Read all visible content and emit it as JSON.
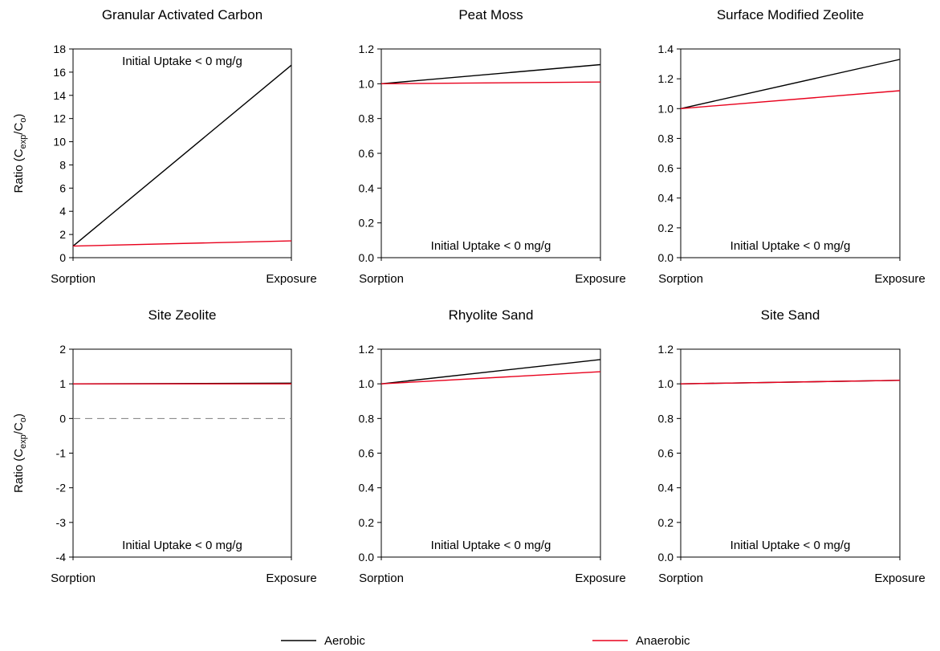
{
  "colors": {
    "aerobic": "#000000",
    "anaerobic": "#e8001c",
    "axis": "#000000",
    "zero_line": "#7f7f7f"
  },
  "legend": {
    "aerobic_label": "Aerobic",
    "anaerobic_label": "Anaerobic",
    "placement": "bottom"
  },
  "ylabel_parts": {
    "base": "Ratio (C",
    "sub1": "exp",
    "mid": "/C",
    "sub2": "o",
    "end": ")"
  },
  "chart_data": [
    {
      "type": "line",
      "title": "Granular Activated Carbon",
      "categories": [
        "Sorption",
        "Exposure"
      ],
      "ylim": [
        0,
        18
      ],
      "yticks": [
        "0",
        "2",
        "4",
        "6",
        "8",
        "10",
        "12",
        "14",
        "16",
        "18"
      ],
      "series": [
        {
          "name": "Aerobic",
          "values": [
            1.0,
            16.6
          ]
        },
        {
          "name": "Anaerobic",
          "values": [
            1.0,
            1.45
          ]
        }
      ],
      "annotation": "Initial Uptake < 0 mg/g",
      "annotation_position": "top",
      "show_ylabel": true
    },
    {
      "type": "line",
      "title": "Peat Moss",
      "categories": [
        "Sorption",
        "Exposure"
      ],
      "ylim": [
        0,
        1.2
      ],
      "yticks": [
        "0.0",
        "0.2",
        "0.4",
        "0.6",
        "0.8",
        "1.0",
        "1.2"
      ],
      "series": [
        {
          "name": "Aerobic",
          "values": [
            1.0,
            1.11
          ]
        },
        {
          "name": "Anaerobic",
          "values": [
            1.0,
            1.01
          ]
        }
      ],
      "annotation": "Initial Uptake < 0 mg/g",
      "annotation_position": "bottom",
      "show_ylabel": false
    },
    {
      "type": "line",
      "title": "Surface Modified Zeolite",
      "categories": [
        "Sorption",
        "Exposure"
      ],
      "ylim": [
        0,
        1.4
      ],
      "yticks": [
        "0.0",
        "0.2",
        "0.4",
        "0.6",
        "0.8",
        "1.0",
        "1.2",
        "1.4"
      ],
      "series": [
        {
          "name": "Aerobic",
          "values": [
            1.0,
            1.33
          ]
        },
        {
          "name": "Anaerobic",
          "values": [
            1.0,
            1.12
          ]
        }
      ],
      "annotation": "Initial Uptake < 0 mg/g",
      "annotation_position": "bottom",
      "show_ylabel": false
    },
    {
      "type": "line",
      "title": "Site Zeolite",
      "categories": [
        "Sorption",
        "Exposure"
      ],
      "ylim": [
        -4,
        2
      ],
      "yticks": [
        "-4",
        "-3",
        "-2",
        "-1",
        "0",
        "1",
        "2"
      ],
      "zero_line": true,
      "series": [
        {
          "name": "Aerobic",
          "values": [
            1.0,
            1.02
          ]
        },
        {
          "name": "Anaerobic",
          "values": [
            1.0,
            1.0
          ]
        }
      ],
      "annotation": "Initial Uptake < 0 mg/g",
      "annotation_position": "bottom",
      "show_ylabel": true
    },
    {
      "type": "line",
      "title": "Rhyolite Sand",
      "categories": [
        "Sorption",
        "Exposure"
      ],
      "ylim": [
        0,
        1.2
      ],
      "yticks": [
        "0.0",
        "0.2",
        "0.4",
        "0.6",
        "0.8",
        "1.0",
        "1.2"
      ],
      "series": [
        {
          "name": "Aerobic",
          "values": [
            1.0,
            1.14
          ]
        },
        {
          "name": "Anaerobic",
          "values": [
            1.0,
            1.07
          ]
        }
      ],
      "annotation": "Initial Uptake < 0 mg/g",
      "annotation_position": "bottom",
      "show_ylabel": false
    },
    {
      "type": "line",
      "title": "Site Sand",
      "categories": [
        "Sorption",
        "Exposure"
      ],
      "ylim": [
        0,
        1.2
      ],
      "yticks": [
        "0.0",
        "0.2",
        "0.4",
        "0.6",
        "0.8",
        "1.0",
        "1.2"
      ],
      "series": [
        {
          "name": "Aerobic",
          "values": [
            1.0,
            1.02
          ]
        },
        {
          "name": "Anaerobic",
          "values": [
            1.0,
            1.02
          ]
        }
      ],
      "annotation": "Initial Uptake < 0 mg/g",
      "annotation_position": "bottom",
      "show_ylabel": false
    }
  ]
}
